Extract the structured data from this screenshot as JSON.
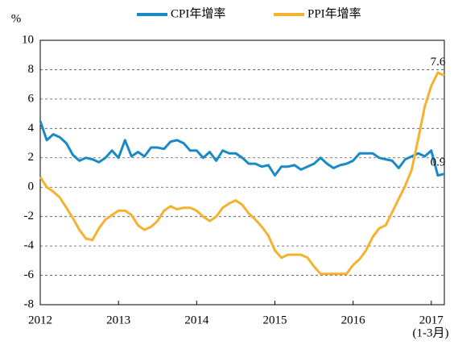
{
  "chart_data": {
    "type": "line",
    "y_label": "%",
    "x_note": "(1-3月)",
    "categories": [
      "2012",
      null,
      null,
      null,
      null,
      null,
      null,
      null,
      null,
      null,
      null,
      null,
      "2013",
      null,
      null,
      null,
      null,
      null,
      null,
      null,
      null,
      null,
      null,
      null,
      "2014",
      null,
      null,
      null,
      null,
      null,
      null,
      null,
      null,
      null,
      null,
      null,
      "2015",
      null,
      null,
      null,
      null,
      null,
      null,
      null,
      null,
      null,
      null,
      null,
      "2016",
      null,
      null,
      null,
      null,
      null,
      null,
      null,
      null,
      null,
      null,
      null,
      "2017",
      null,
      null
    ],
    "series": [
      {
        "name": "CPI年增率",
        "color": "#1a8ac6",
        "values": [
          4.5,
          3.2,
          3.6,
          3.4,
          3.0,
          2.2,
          1.8,
          2.0,
          1.9,
          1.7,
          2.0,
          2.5,
          2.0,
          3.2,
          2.1,
          2.4,
          2.1,
          2.7,
          2.7,
          2.6,
          3.1,
          3.2,
          3.0,
          2.5,
          2.5,
          2.0,
          2.4,
          1.8,
          2.5,
          2.3,
          2.3,
          2.0,
          1.6,
          1.6,
          1.4,
          1.5,
          0.8,
          1.4,
          1.4,
          1.5,
          1.2,
          1.4,
          1.6,
          2.0,
          1.6,
          1.3,
          1.5,
          1.6,
          1.8,
          2.3,
          2.3,
          2.3,
          2.0,
          1.9,
          1.8,
          1.3,
          1.9,
          2.1,
          2.3,
          2.1,
          2.5,
          0.8,
          0.9
        ]
      },
      {
        "name": "PPI年增率",
        "color": "#f5b130",
        "values": [
          0.7,
          0.0,
          -0.3,
          -0.7,
          -1.4,
          -2.1,
          -2.9,
          -3.5,
          -3.6,
          -2.8,
          -2.2,
          -1.9,
          -1.6,
          -1.6,
          -1.9,
          -2.6,
          -2.9,
          -2.7,
          -2.3,
          -1.6,
          -1.3,
          -1.5,
          -1.4,
          -1.4,
          -1.6,
          -2.0,
          -2.3,
          -2.0,
          -1.4,
          -1.1,
          -0.9,
          -1.2,
          -1.8,
          -2.2,
          -2.7,
          -3.3,
          -4.3,
          -4.8,
          -4.6,
          -4.6,
          -4.6,
          -4.8,
          -5.4,
          -5.9,
          -5.9,
          -5.9,
          -5.9,
          -5.9,
          -5.3,
          -4.9,
          -4.3,
          -3.4,
          -2.8,
          -2.6,
          -1.7,
          -0.8,
          0.1,
          1.2,
          3.3,
          5.5,
          6.9,
          7.8,
          7.6
        ]
      }
    ],
    "ylim": [
      -8,
      10
    ],
    "yticks": [
      -8,
      -6,
      -4,
      -2,
      0,
      2,
      4,
      6,
      8,
      10
    ],
    "grid": true
  }
}
